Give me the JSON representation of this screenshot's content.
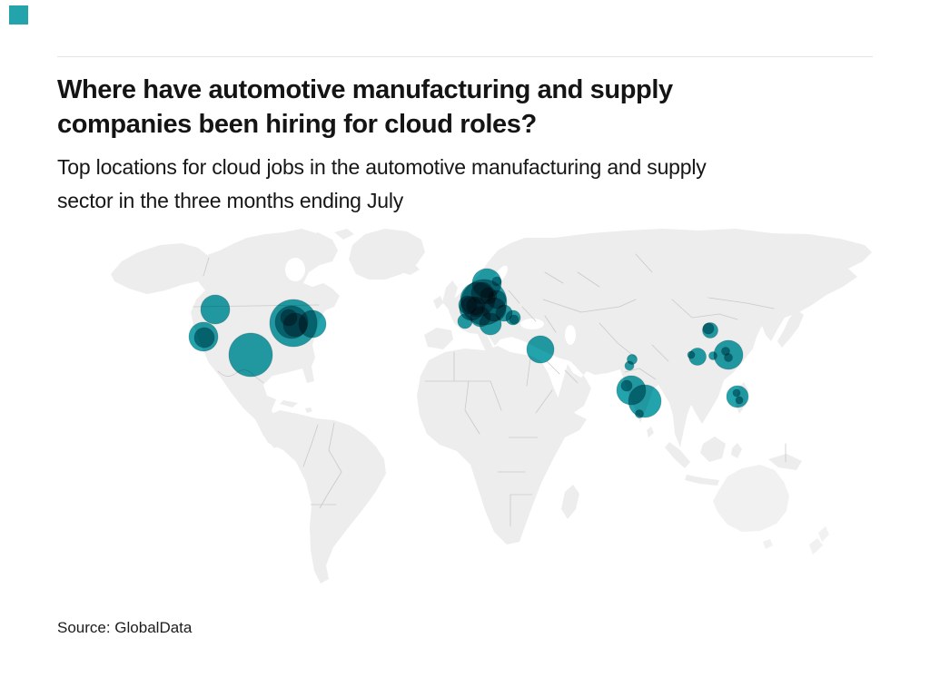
{
  "theme": {
    "accent_teal": "#23A3AC",
    "land_gray": "#EDEDED",
    "border_gray": "#C9C9C9",
    "rule_gray": "#E3E3E3",
    "text_color": "#141414"
  },
  "header": {
    "title_lines": [
      "Where have automotive manufacturing and supply",
      "companies been hiring for cloud roles?"
    ],
    "subtitle_lines": [
      "Top locations for cloud jobs in the automotive manufacturing and supply",
      "sector in the three months ending July"
    ]
  },
  "footer": {
    "source": "Source: GlobalData"
  },
  "chart_data": {
    "type": "bubble-map",
    "title": "Where have automotive manufacturing and supply companies been hiring for cloud roles?",
    "subtitle": "Top locations for cloud jobs in the automotive manufacturing and supply sector in the three months ending July",
    "source": "Source: GlobalData",
    "projection_note": "world map, bubbles positioned in screenshot pixel coordinates [cx, cy, r]; radius encodes relative cloud-job hiring volume; overlapping bubbles multiply to darker teal",
    "legend": "none shown",
    "bubble_groups": [
      {
        "region": "north-america-west",
        "bubbles": [
          [
            237,
            341,
            16
          ],
          [
            224,
            371,
            16
          ],
          [
            225,
            372,
            11
          ],
          [
            276,
            391,
            24
          ]
        ]
      },
      {
        "region": "north-america-east",
        "bubbles": [
          [
            323,
            356,
            26
          ],
          [
            321,
            355,
            18
          ],
          [
            325,
            358,
            13
          ],
          [
            318,
            350,
            9
          ],
          [
            344,
            357,
            15
          ]
        ]
      },
      {
        "region": "europe",
        "bubbles": [
          [
            536,
            312,
            16
          ],
          [
            547,
            310,
            5
          ],
          [
            533,
            333,
            25
          ],
          [
            526,
            330,
            19
          ],
          [
            519,
            340,
            13
          ],
          [
            515,
            336,
            10
          ],
          [
            524,
            337,
            10
          ],
          [
            531,
            323,
            12
          ],
          [
            538,
            326,
            9
          ],
          [
            547,
            330,
            10
          ],
          [
            544,
            341,
            13
          ],
          [
            555,
            345,
            9
          ],
          [
            540,
            357,
            12
          ],
          [
            529,
            349,
            11
          ],
          [
            512,
            354,
            8
          ],
          [
            565,
            350,
            8
          ],
          [
            566,
            352,
            5
          ]
        ]
      },
      {
        "region": "mediterranean-middle-east",
        "bubbles": [
          [
            595,
            385,
            15
          ],
          [
            696,
            396,
            5.5
          ],
          [
            693,
            403,
            5
          ]
        ]
      },
      {
        "region": "south-asia",
        "bubbles": [
          [
            695,
            430,
            16
          ],
          [
            690,
            425,
            6
          ],
          [
            710,
            442,
            18
          ],
          [
            704,
            456,
            4.5
          ]
        ]
      },
      {
        "region": "east-asia",
        "bubbles": [
          [
            782,
            364,
            8.5
          ],
          [
            780,
            362,
            6
          ],
          [
            768,
            393,
            9.5
          ],
          [
            761,
            391,
            4
          ],
          [
            785,
            392,
            4.5
          ],
          [
            802,
            391,
            16
          ],
          [
            799,
            387,
            4.5
          ],
          [
            802,
            394,
            4.5
          ],
          [
            812,
            437,
            12
          ],
          [
            811,
            433,
            4
          ],
          [
            814,
            441,
            4
          ]
        ]
      }
    ]
  }
}
